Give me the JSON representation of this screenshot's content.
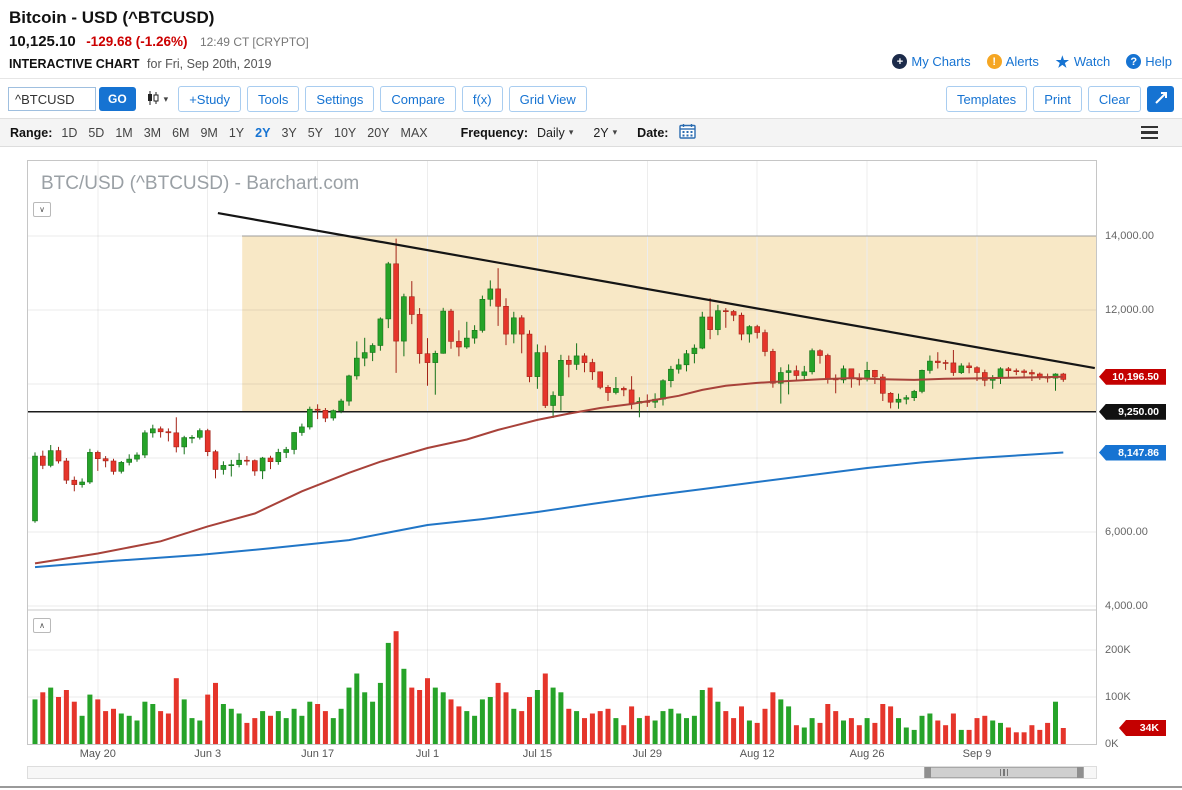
{
  "header": {
    "title": "Bitcoin - USD (^BTCUSD)",
    "price": "10,125.10",
    "change": "-129.68 (-1.26%)",
    "quote_time": "12:49 CT [CRYPTO]",
    "page_label": "INTERACTIVE CHART",
    "page_date": "for Fri, Sep 20th, 2019",
    "links": {
      "my_charts": "My Charts",
      "alerts": "Alerts",
      "watch": "Watch",
      "help": "Help"
    }
  },
  "toolbar": {
    "symbol_value": "^BTCUSD",
    "go_label": "GO",
    "buttons": [
      "+Study",
      "Tools",
      "Settings",
      "Compare",
      "f(x)",
      "Grid View"
    ],
    "right_buttons": [
      "Templates",
      "Print",
      "Clear"
    ]
  },
  "range_bar": {
    "range_label": "Range:",
    "ranges": [
      "1D",
      "5D",
      "1M",
      "3M",
      "6M",
      "9M",
      "1Y",
      "2Y",
      "3Y",
      "5Y",
      "10Y",
      "20Y",
      "MAX"
    ],
    "selected_range": "2Y",
    "frequency_label": "Frequency:",
    "frequency_value": "Daily",
    "period_value": "2Y",
    "date_label": "Date:"
  },
  "chart": {
    "watermark": "BTC/USD (^BTCUSD) - Barchart.com"
  },
  "icons": {
    "caret_down": "▾",
    "collapse_pane": "∨",
    "expand_pane": "∧",
    "star": "★",
    "plus": "+",
    "exclamation": "!",
    "question": "?"
  },
  "colors": {
    "accent_blue": "#1673d2",
    "negative_red": "#cc0000",
    "candle_up": "#26a329",
    "candle_up_border": "#147218",
    "candle_down": "#e5352b",
    "candle_down_border": "#a32318",
    "ma_fast_red": "#a8423a",
    "ma_slow_blue": "#2176c7",
    "zone_fill": "#f8e8c6",
    "badge_red": "#c40000",
    "badge_black": "#111111",
    "badge_blue": "#1673d2"
  },
  "chart_data": {
    "type": "candlestick",
    "title": "BTC/USD (^BTCUSD) - Barchart.com",
    "candle_format": [
      "open",
      "high",
      "low",
      "close",
      "volume_k"
    ],
    "price_gridlines": [
      14000,
      12000,
      10000,
      8000,
      6000,
      4000
    ],
    "visible_price_labels": [
      {
        "price": 14000,
        "label": "14,000.00"
      },
      {
        "price": 12000,
        "label": "12,000.00"
      },
      {
        "price": 6000,
        "label": "6,000.00"
      },
      {
        "price": 4000,
        "label": "4,000.00"
      }
    ],
    "volume_gridlines_k": [
      200,
      100
    ],
    "volume_axis_labels": [
      {
        "k": 200,
        "label": "200K"
      },
      {
        "k": 100,
        "label": "100K"
      },
      {
        "k": 0,
        "label": "0K"
      }
    ],
    "x_ticks": [
      {
        "index": 8,
        "label": "May 20"
      },
      {
        "index": 22,
        "label": "Jun 3"
      },
      {
        "index": 36,
        "label": "Jun 17"
      },
      {
        "index": 50,
        "label": "Jul 1"
      },
      {
        "index": 64,
        "label": "Jul 15"
      },
      {
        "index": 78,
        "label": "Jul 29"
      },
      {
        "index": 92,
        "label": "Aug 12"
      },
      {
        "index": 106,
        "label": "Aug 26"
      },
      {
        "index": 120,
        "label": "Sep 9"
      }
    ],
    "badges": [
      {
        "id": "ma-red",
        "label": "10,196.50",
        "price": 10196.5,
        "color": "#c40000",
        "pane": "price"
      },
      {
        "id": "level",
        "label": "9,250.00",
        "price": 9250,
        "color": "#111111",
        "pane": "price"
      },
      {
        "id": "ma-blue",
        "label": "8,147.86",
        "price": 8147.86,
        "color": "#1673d2",
        "pane": "price"
      },
      {
        "id": "volume",
        "label": "34K",
        "volume_k": 34,
        "color": "#c40000",
        "pane": "volume"
      }
    ],
    "overlays": {
      "horizontal_level": 9250,
      "zone": {
        "start_index": 26.4,
        "top": 14000,
        "bottom": 9250,
        "color": "#f8e8c6"
      },
      "trendline": {
        "points": [
          [
            23.3,
            14620
          ],
          [
            135,
            10430
          ]
        ]
      },
      "ma_red": {
        "last_value": 10196.5,
        "points": [
          [
            0,
            5150
          ],
          [
            8,
            5420
          ],
          [
            16,
            5750
          ],
          [
            22,
            6150
          ],
          [
            28,
            6500
          ],
          [
            34,
            7100
          ],
          [
            40,
            7600
          ],
          [
            44,
            7900
          ],
          [
            50,
            8270
          ],
          [
            55,
            8500
          ],
          [
            59,
            8760
          ],
          [
            64,
            9030
          ],
          [
            68,
            9200
          ],
          [
            72,
            9350
          ],
          [
            76,
            9460
          ],
          [
            79,
            9570
          ],
          [
            82,
            9680
          ],
          [
            85,
            9840
          ],
          [
            88,
            9950
          ],
          [
            92,
            10030
          ],
          [
            96,
            10080
          ],
          [
            100,
            10130
          ],
          [
            104,
            10160
          ],
          [
            108,
            10130
          ],
          [
            112,
            10110
          ],
          [
            116,
            10140
          ],
          [
            120,
            10150
          ],
          [
            124,
            10170
          ],
          [
            128,
            10180
          ],
          [
            131,
            10196.5
          ]
        ]
      },
      "ma_blue": {
        "last_value": 8147.86,
        "points": [
          [
            0,
            5050
          ],
          [
            10,
            5220
          ],
          [
            21,
            5380
          ],
          [
            30,
            5560
          ],
          [
            40,
            5780
          ],
          [
            50,
            6190
          ],
          [
            57,
            6350
          ],
          [
            64,
            6540
          ],
          [
            71,
            6760
          ],
          [
            78,
            6970
          ],
          [
            85,
            7160
          ],
          [
            92,
            7350
          ],
          [
            99,
            7540
          ],
          [
            106,
            7730
          ],
          [
            113,
            7880
          ],
          [
            120,
            8000
          ],
          [
            126,
            8080
          ],
          [
            131,
            8147.86
          ]
        ]
      }
    },
    "candles": [
      [
        6300,
        8150,
        6250,
        8050,
        95
      ],
      [
        8050,
        8200,
        7700,
        7800,
        110
      ],
      [
        7800,
        8350,
        7750,
        8200,
        120
      ],
      [
        8200,
        8300,
        7850,
        7920,
        100
      ],
      [
        7920,
        8000,
        7300,
        7400,
        115
      ],
      [
        7400,
        7500,
        7100,
        7280,
        90
      ],
      [
        7280,
        7450,
        7200,
        7350,
        60
      ],
      [
        7350,
        8250,
        7300,
        8150,
        105
      ],
      [
        8150,
        8200,
        7650,
        7980,
        95
      ],
      [
        7980,
        8050,
        7750,
        7920,
        70
      ],
      [
        7920,
        7980,
        7550,
        7640,
        75
      ],
      [
        7640,
        7920,
        7580,
        7880,
        65
      ],
      [
        7880,
        8100,
        7800,
        7970,
        60
      ],
      [
        7970,
        8150,
        7900,
        8080,
        50
      ],
      [
        8080,
        8750,
        8000,
        8680,
        90
      ],
      [
        8680,
        8900,
        8550,
        8790,
        85
      ],
      [
        8790,
        8850,
        8550,
        8710,
        70
      ],
      [
        8710,
        8800,
        8450,
        8680,
        65
      ],
      [
        8680,
        9100,
        8150,
        8300,
        140
      ],
      [
        8300,
        8600,
        8100,
        8550,
        95
      ],
      [
        8550,
        8620,
        8400,
        8560,
        55
      ],
      [
        8560,
        8800,
        8500,
        8740,
        50
      ],
      [
        8740,
        8790,
        8050,
        8170,
        105
      ],
      [
        8170,
        8220,
        7450,
        7690,
        130
      ],
      [
        7690,
        7910,
        7550,
        7800,
        85
      ],
      [
        7800,
        7950,
        7500,
        7820,
        75
      ],
      [
        7820,
        8130,
        7750,
        7940,
        65
      ],
      [
        7940,
        8050,
        7800,
        7930,
        45
      ],
      [
        7930,
        7960,
        7520,
        7650,
        55
      ],
      [
        7650,
        8030,
        7430,
        8000,
        70
      ],
      [
        8000,
        8060,
        7700,
        7900,
        60
      ],
      [
        7900,
        8250,
        7820,
        8150,
        70
      ],
      [
        8150,
        8300,
        8000,
        8230,
        55
      ],
      [
        8230,
        8700,
        8100,
        8690,
        75
      ],
      [
        8690,
        8930,
        8600,
        8840,
        60
      ],
      [
        8840,
        9390,
        8770,
        9320,
        90
      ],
      [
        9320,
        9450,
        9050,
        9290,
        85
      ],
      [
        9290,
        9350,
        8970,
        9080,
        70
      ],
      [
        9080,
        9310,
        9010,
        9280,
        55
      ],
      [
        9280,
        9600,
        9210,
        9540,
        75
      ],
      [
        9540,
        10250,
        9410,
        10220,
        120
      ],
      [
        10220,
        11150,
        10120,
        10700,
        150
      ],
      [
        10700,
        11250,
        10480,
        10850,
        110
      ],
      [
        10850,
        11100,
        10620,
        11040,
        90
      ],
      [
        11040,
        11800,
        10900,
        11760,
        130
      ],
      [
        11760,
        13300,
        11510,
        13250,
        215
      ],
      [
        13250,
        13930,
        10300,
        11160,
        240
      ],
      [
        11160,
        12440,
        10750,
        12360,
        160
      ],
      [
        12360,
        12780,
        11620,
        11880,
        120
      ],
      [
        11880,
        12050,
        10550,
        10820,
        115
      ],
      [
        10820,
        11240,
        9950,
        10580,
        140
      ],
      [
        10580,
        10900,
        9710,
        10830,
        120
      ],
      [
        10830,
        12060,
        10820,
        11970,
        110
      ],
      [
        11970,
        12030,
        10950,
        11150,
        95
      ],
      [
        11150,
        11450,
        10750,
        11000,
        80
      ],
      [
        11000,
        11680,
        10950,
        11240,
        70
      ],
      [
        11240,
        11590,
        11090,
        11450,
        60
      ],
      [
        11450,
        12390,
        11390,
        12290,
        95
      ],
      [
        12290,
        12800,
        12100,
        12570,
        100
      ],
      [
        12570,
        13130,
        11570,
        12100,
        130
      ],
      [
        12100,
        12320,
        11050,
        11350,
        110
      ],
      [
        11350,
        11950,
        11100,
        11790,
        75
      ],
      [
        11790,
        11860,
        10830,
        11350,
        70
      ],
      [
        11350,
        11450,
        10050,
        10200,
        100
      ],
      [
        10200,
        11070,
        9870,
        10850,
        115
      ],
      [
        10850,
        11040,
        9350,
        9420,
        150
      ],
      [
        9420,
        9800,
        9080,
        9690,
        120
      ],
      [
        9690,
        10790,
        9280,
        10640,
        110
      ],
      [
        10640,
        10770,
        10180,
        10530,
        75
      ],
      [
        10530,
        11100,
        10380,
        10760,
        70
      ],
      [
        10760,
        10830,
        10320,
        10580,
        55
      ],
      [
        10580,
        10680,
        10110,
        10330,
        65
      ],
      [
        10330,
        10340,
        9860,
        9910,
        70
      ],
      [
        9910,
        9970,
        9540,
        9770,
        75
      ],
      [
        9770,
        10190,
        9720,
        9880,
        55
      ],
      [
        9880,
        9930,
        9670,
        9840,
        40
      ],
      [
        9840,
        10210,
        9320,
        9480,
        80
      ],
      [
        9480,
        9640,
        9100,
        9530,
        55
      ],
      [
        9530,
        9720,
        9380,
        9510,
        60
      ],
      [
        9510,
        9750,
        9350,
        9590,
        50
      ],
      [
        9590,
        10130,
        9420,
        10090,
        70
      ],
      [
        10090,
        10490,
        9910,
        10400,
        75
      ],
      [
        10400,
        10680,
        10280,
        10520,
        65
      ],
      [
        10520,
        10920,
        10340,
        10820,
        55
      ],
      [
        10820,
        11070,
        10560,
        10970,
        60
      ],
      [
        10970,
        11950,
        10940,
        11810,
        115
      ],
      [
        11810,
        12320,
        11210,
        11470,
        120
      ],
      [
        11470,
        12140,
        11320,
        11980,
        90
      ],
      [
        11980,
        12050,
        11520,
        11960,
        70
      ],
      [
        11960,
        12000,
        11700,
        11860,
        55
      ],
      [
        11860,
        11930,
        11180,
        11350,
        80
      ],
      [
        11350,
        11590,
        11120,
        11550,
        50
      ],
      [
        11550,
        11600,
        11230,
        11390,
        45
      ],
      [
        11390,
        11470,
        10750,
        10880,
        75
      ],
      [
        10880,
        10950,
        9900,
        10020,
        110
      ],
      [
        10020,
        10450,
        9470,
        10310,
        95
      ],
      [
        10310,
        10530,
        9720,
        10360,
        80
      ],
      [
        10360,
        10500,
        10070,
        10230,
        40
      ],
      [
        10230,
        10490,
        10090,
        10330,
        35
      ],
      [
        10330,
        10960,
        10260,
        10900,
        55
      ],
      [
        10900,
        10940,
        10550,
        10770,
        45
      ],
      [
        10770,
        10820,
        10010,
        10140,
        85
      ],
      [
        10140,
        10260,
        9750,
        10110,
        70
      ],
      [
        10110,
        10500,
        10020,
        10410,
        50
      ],
      [
        10410,
        10420,
        9900,
        10140,
        55
      ],
      [
        10140,
        10290,
        9960,
        10130,
        40
      ],
      [
        10130,
        10600,
        10070,
        10370,
        55
      ],
      [
        10370,
        10380,
        10000,
        10190,
        45
      ],
      [
        10190,
        10270,
        9540,
        9750,
        85
      ],
      [
        9750,
        9780,
        9340,
        9510,
        80
      ],
      [
        9510,
        9740,
        9330,
        9590,
        55
      ],
      [
        9590,
        9700,
        9450,
        9630,
        35
      ],
      [
        9630,
        9840,
        9540,
        9800,
        30
      ],
      [
        9800,
        10390,
        9750,
        10370,
        60
      ],
      [
        10370,
        10770,
        10280,
        10620,
        65
      ],
      [
        10620,
        10860,
        10420,
        10580,
        50
      ],
      [
        10580,
        10650,
        10380,
        10570,
        40
      ],
      [
        10570,
        10920,
        10220,
        10310,
        65
      ],
      [
        10310,
        10560,
        10270,
        10490,
        30
      ],
      [
        10490,
        10580,
        10290,
        10440,
        30
      ],
      [
        10440,
        10480,
        10080,
        10310,
        55
      ],
      [
        10310,
        10390,
        9940,
        10100,
        60
      ],
      [
        10100,
        10240,
        9870,
        10160,
        50
      ],
      [
        10160,
        10450,
        10000,
        10410,
        45
      ],
      [
        10410,
        10460,
        10180,
        10360,
        35
      ],
      [
        10360,
        10420,
        10240,
        10350,
        25
      ],
      [
        10350,
        10400,
        10200,
        10310,
        25
      ],
      [
        10310,
        10390,
        10080,
        10270,
        40
      ],
      [
        10270,
        10310,
        10110,
        10190,
        30
      ],
      [
        10190,
        10280,
        10040,
        10160,
        45
      ],
      [
        10160,
        10290,
        9820,
        10270,
        90
      ],
      [
        10270,
        10300,
        10060,
        10125,
        34
      ]
    ]
  }
}
